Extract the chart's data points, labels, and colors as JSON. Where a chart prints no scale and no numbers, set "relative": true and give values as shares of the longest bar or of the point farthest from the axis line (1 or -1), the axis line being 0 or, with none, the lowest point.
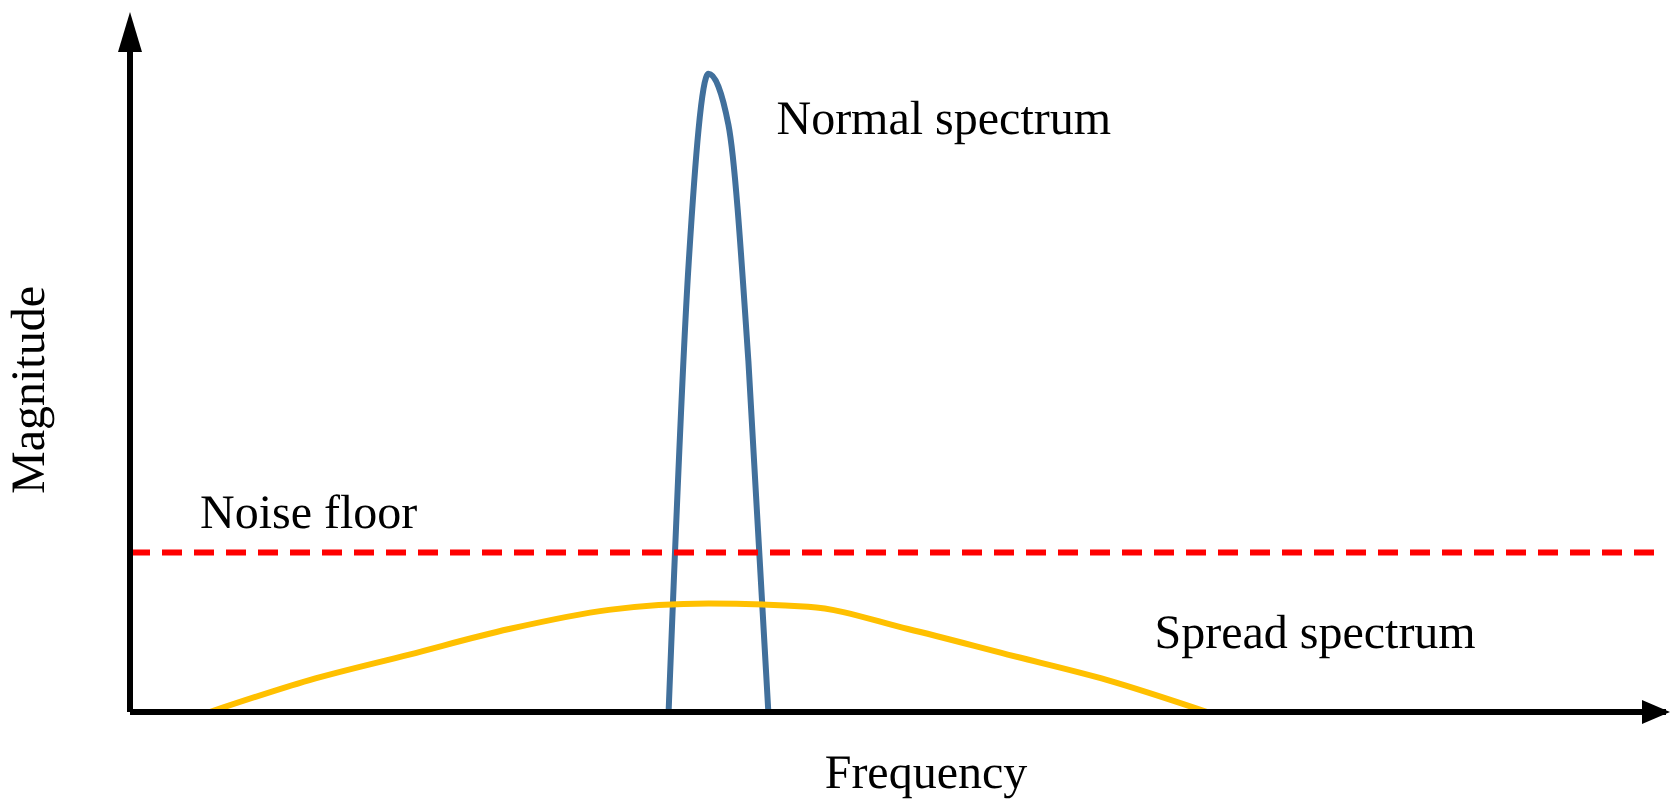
{
  "chart_data": {
    "type": "line",
    "relative": true,
    "xlabel": "Frequency",
    "ylabel": "Magnitude",
    "marker": "none",
    "grid": false,
    "categories": [
      null,
      null,
      null,
      null,
      null,
      null,
      null,
      null,
      null,
      null,
      null,
      null,
      null,
      null,
      null,
      null,
      null,
      null,
      null,
      null,
      null,
      null,
      null,
      null,
      null,
      null,
      null,
      null,
      null,
      null,
      null,
      null,
      null,
      null,
      null,
      null,
      null,
      null,
      null,
      null,
      null,
      null,
      null,
      null,
      null,
      null,
      null,
      null,
      null,
      null,
      null,
      null,
      null,
      null,
      null,
      null,
      null,
      null,
      null,
      null,
      null,
      null,
      null,
      null,
      null,
      null,
      null,
      null,
      null,
      null,
      null,
      null,
      null,
      null,
      null,
      null,
      null,
      null
    ],
    "series": [
      {
        "name": "Normal spectrum",
        "color": "#41709c",
        "line_style": "solid",
        "values": [
          null,
          null,
          null,
          null,
          null,
          null,
          null,
          null,
          null,
          null,
          null,
          null,
          null,
          null,
          null,
          null,
          null,
          null,
          null,
          null,
          null,
          null,
          null,
          null,
          null,
          null,
          null,
          0,
          0.7,
          1,
          0.92,
          0.55,
          0,
          null,
          null,
          null,
          null,
          null,
          null,
          null,
          null,
          null,
          null,
          null,
          null,
          null,
          null,
          null,
          null,
          null,
          null,
          null,
          null,
          null,
          null,
          null,
          null,
          null,
          null,
          null,
          null,
          null,
          null,
          null,
          null,
          null,
          null,
          null,
          null,
          null,
          null,
          null,
          null,
          null,
          null,
          null,
          null,
          null
        ]
      },
      {
        "name": "Spread spectrum",
        "color": "#ffc000",
        "line_style": "solid",
        "values": [
          null,
          null,
          null,
          null,
          0,
          null,
          null,
          null,
          null,
          0.05,
          null,
          null,
          null,
          null,
          0.09,
          null,
          null,
          null,
          null,
          0.13,
          null,
          null,
          null,
          null,
          0.16,
          null,
          null,
          null,
          null,
          0.17,
          null,
          null,
          null,
          null,
          0.165,
          null,
          null,
          null,
          null,
          0.13,
          null,
          null,
          null,
          null,
          0.09,
          null,
          null,
          null,
          null,
          0.05,
          null,
          null,
          null,
          null,
          0,
          null,
          null,
          null,
          null,
          null,
          null,
          null,
          null,
          null,
          null,
          null,
          null,
          null,
          null,
          null,
          null,
          null,
          null,
          null,
          null,
          null,
          null,
          null
        ]
      }
    ],
    "ref_lines": [
      {
        "axis": "y",
        "value": 0.25,
        "label": "Noise floor",
        "color": "#ff0000",
        "line_style": "dashed"
      }
    ]
  }
}
